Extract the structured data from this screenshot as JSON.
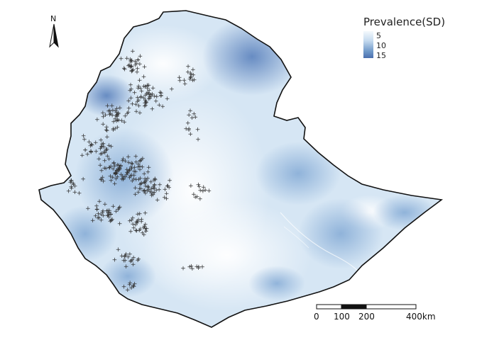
{
  "north_arrow": {
    "letter": "N",
    "icon": "north-arrow-icon"
  },
  "legend": {
    "title": "Prevalence(SD)",
    "labels": [
      "5",
      "10",
      "15"
    ],
    "colors": {
      "low": "#f4f9fd",
      "mid": "#c6dbef",
      "high": "#4a6fae"
    }
  },
  "scale_bar": {
    "labels": [
      "0",
      "100",
      "200",
      "400km"
    ]
  },
  "map": {
    "boundary_color": "#111111",
    "point_marker": "+",
    "point_color": "#333333"
  }
}
